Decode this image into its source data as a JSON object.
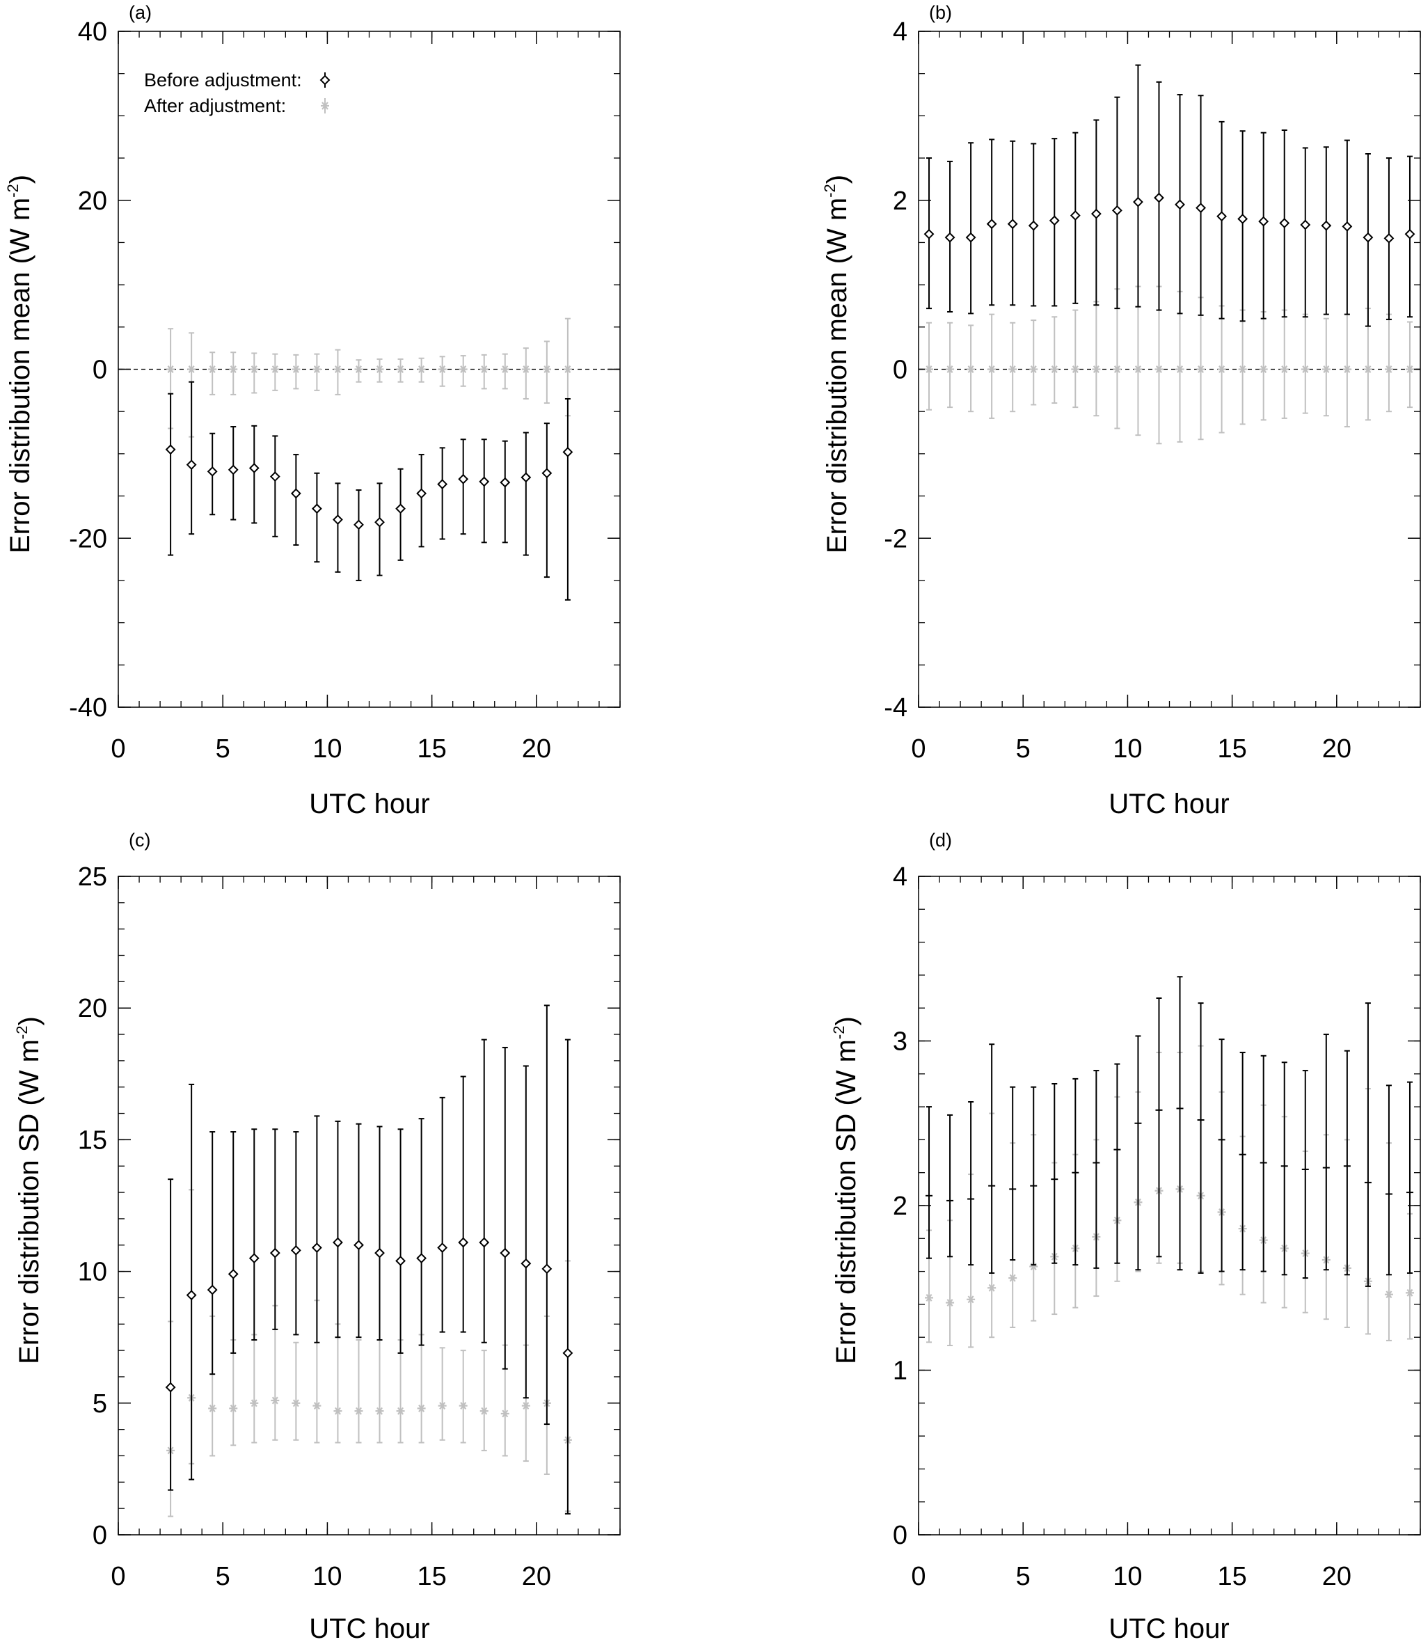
{
  "legend": {
    "before_label": "Before adjustment:",
    "after_label": "After adjustment:"
  },
  "colors": {
    "before": "#000000",
    "after": "#c0c0c0",
    "axis": "#000000"
  },
  "chart_data": [
    {
      "id": "a",
      "panel_label": "(a)",
      "type": "scatter",
      "title": "",
      "xlabel": "UTC hour",
      "ylabel": "Error distribution mean (W m",
      "ylabel_sup": "-2",
      "ylabel_close": ")",
      "xlim": [
        0,
        24
      ],
      "ylim": [
        -40,
        40
      ],
      "xticks": [
        0,
        5,
        10,
        15,
        20
      ],
      "yticks": [
        -40,
        -20,
        0,
        20,
        40
      ],
      "xminor": 1,
      "yminor": 5,
      "zero_line": true,
      "legend": true,
      "series": [
        {
          "name": "Before adjustment",
          "marker": "diamond",
          "x": [
            2.5,
            3.5,
            4.5,
            5.5,
            6.5,
            7.5,
            8.5,
            9.5,
            10.5,
            11.5,
            12.5,
            13.5,
            14.5,
            15.5,
            16.5,
            17.5,
            18.5,
            19.5,
            20.5,
            21.5
          ],
          "y": [
            -9.5,
            -11.3,
            -12.1,
            -11.9,
            -11.7,
            -12.7,
            -14.7,
            -16.5,
            -17.8,
            -18.4,
            -18.1,
            -16.5,
            -14.7,
            -13.6,
            -13,
            -13.3,
            -13.4,
            -12.8,
            -12.3,
            -9.8
          ],
          "err_low": [
            -22,
            -19.5,
            -17.2,
            -17.8,
            -18.2,
            -19.8,
            -20.8,
            -22.8,
            -24,
            -25,
            -24.4,
            -22.6,
            -21,
            -20.1,
            -19.5,
            -20.5,
            -20.5,
            -22,
            -24.6,
            -27.3
          ],
          "err_high": [
            -2.9,
            -1.5,
            -7.6,
            -6.8,
            -6.7,
            -7.9,
            -10.1,
            -12.3,
            -13.5,
            -14.3,
            -13.5,
            -11.8,
            -10.1,
            -9.3,
            -8.3,
            -8.3,
            -8.5,
            -7.5,
            -6.4,
            -3.5
          ]
        },
        {
          "name": "After adjustment",
          "marker": "asterisk",
          "x": [
            2.5,
            3.5,
            4.5,
            5.5,
            6.5,
            7.5,
            8.5,
            9.5,
            10.5,
            11.5,
            12.5,
            13.5,
            14.5,
            15.5,
            16.5,
            17.5,
            18.5,
            19.5,
            20.5,
            21.5
          ],
          "y": [
            0,
            0,
            0,
            0,
            0,
            0,
            0,
            0,
            0,
            0,
            0,
            0,
            0,
            0,
            0,
            0,
            0,
            0,
            0,
            0
          ],
          "err_low": [
            -7,
            -8,
            -3,
            -3,
            -2.8,
            -2.5,
            -2.3,
            -2.5,
            -3,
            -1.5,
            -1.5,
            -1.5,
            -1.5,
            -2,
            -2,
            -2.3,
            -2.3,
            -3.5,
            -4,
            -5.5
          ],
          "err_high": [
            4.8,
            4.3,
            2,
            2,
            1.9,
            1.8,
            1.7,
            1.8,
            2.3,
            1.1,
            1.2,
            1.2,
            1.3,
            1.5,
            1.6,
            1.7,
            1.8,
            2.5,
            3.3,
            6
          ]
        }
      ]
    },
    {
      "id": "b",
      "panel_label": "(b)",
      "type": "scatter",
      "title": "",
      "xlabel": "UTC hour",
      "ylabel": "Error distribution mean (W m",
      "ylabel_sup": "-2",
      "ylabel_close": ")",
      "xlim": [
        0,
        24
      ],
      "ylim": [
        -4,
        4
      ],
      "xticks": [
        0,
        5,
        10,
        15,
        20
      ],
      "yticks": [
        -4,
        -2,
        0,
        2,
        4
      ],
      "xminor": 1,
      "yminor": 0.5,
      "zero_line": true,
      "legend": false,
      "series": [
        {
          "name": "Before adjustment",
          "marker": "diamond",
          "x": [
            0.5,
            1.5,
            2.5,
            3.5,
            4.5,
            5.5,
            6.5,
            7.5,
            8.5,
            9.5,
            10.5,
            11.5,
            12.5,
            13.5,
            14.5,
            15.5,
            16.5,
            17.5,
            18.5,
            19.5,
            20.5,
            21.5,
            22.5,
            23.5
          ],
          "y": [
            1.6,
            1.56,
            1.56,
            1.72,
            1.72,
            1.7,
            1.76,
            1.82,
            1.84,
            1.88,
            1.98,
            2.03,
            1.95,
            1.91,
            1.81,
            1.78,
            1.75,
            1.73,
            1.71,
            1.7,
            1.69,
            1.56,
            1.55,
            1.6
          ],
          "err_low": [
            0.72,
            0.68,
            0.66,
            0.76,
            0.76,
            0.75,
            0.75,
            0.78,
            0.76,
            0.72,
            0.74,
            0.7,
            0.66,
            0.64,
            0.6,
            0.57,
            0.6,
            0.62,
            0.62,
            0.65,
            0.65,
            0.51,
            0.59,
            0.62
          ],
          "err_high": [
            2.5,
            2.46,
            2.68,
            2.72,
            2.7,
            2.67,
            2.73,
            2.8,
            2.95,
            3.22,
            3.6,
            3.4,
            3.25,
            3.24,
            2.93,
            2.82,
            2.8,
            2.83,
            2.62,
            2.63,
            2.71,
            2.55,
            2.5,
            2.52
          ]
        },
        {
          "name": "After adjustment",
          "marker": "asterisk",
          "x": [
            0.5,
            1.5,
            2.5,
            3.5,
            4.5,
            5.5,
            6.5,
            7.5,
            8.5,
            9.5,
            10.5,
            11.5,
            12.5,
            13.5,
            14.5,
            15.5,
            16.5,
            17.5,
            18.5,
            19.5,
            20.5,
            21.5,
            22.5,
            23.5
          ],
          "y": [
            0,
            0,
            0,
            0,
            0,
            0,
            0,
            0,
            0,
            0,
            0,
            0,
            0,
            0,
            0,
            0,
            0,
            0,
            0,
            0,
            0,
            0,
            0,
            0
          ],
          "err_low": [
            -0.48,
            -0.45,
            -0.5,
            -0.58,
            -0.5,
            -0.42,
            -0.4,
            -0.45,
            -0.55,
            -0.7,
            -0.78,
            -0.88,
            -0.86,
            -0.83,
            -0.75,
            -0.65,
            -0.6,
            -0.58,
            -0.52,
            -0.55,
            -0.68,
            -0.6,
            -0.5,
            -0.45
          ],
          "err_high": [
            0.55,
            0.55,
            0.52,
            0.65,
            0.55,
            0.58,
            0.62,
            0.7,
            0.8,
            0.95,
            0.98,
            0.98,
            0.92,
            0.85,
            0.75,
            0.7,
            0.68,
            0.7,
            0.65,
            0.6,
            0.65,
            0.72,
            0.65,
            0.56
          ]
        }
      ]
    },
    {
      "id": "c",
      "panel_label": "(c)",
      "type": "scatter",
      "title": "",
      "xlabel": "UTC hour",
      "ylabel": "Error distribution SD (W m",
      "ylabel_sup": "-2",
      "ylabel_close": ")",
      "xlim": [
        0,
        24
      ],
      "ylim": [
        0,
        25
      ],
      "xticks": [
        0,
        5,
        10,
        15,
        20
      ],
      "yticks": [
        0,
        5,
        10,
        15,
        20,
        25
      ],
      "xminor": 1,
      "yminor": 1,
      "zero_line": false,
      "legend": false,
      "series": [
        {
          "name": "Before adjustment",
          "marker": "diamond",
          "x": [
            2.5,
            3.5,
            4.5,
            5.5,
            6.5,
            7.5,
            8.5,
            9.5,
            10.5,
            11.5,
            12.5,
            13.5,
            14.5,
            15.5,
            16.5,
            17.5,
            18.5,
            19.5,
            20.5,
            21.5
          ],
          "y": [
            5.6,
            9.1,
            9.3,
            9.9,
            10.5,
            10.7,
            10.8,
            10.9,
            11.1,
            11,
            10.7,
            10.4,
            10.5,
            10.9,
            11.1,
            11.1,
            10.7,
            10.3,
            10.1,
            6.9
          ],
          "err_low": [
            1.7,
            2.1,
            6.1,
            6.9,
            7.4,
            7.8,
            7.6,
            7.3,
            7.5,
            7.5,
            7.4,
            6.9,
            7.2,
            7.7,
            7.7,
            7.3,
            6.3,
            5.2,
            4.2,
            0.8
          ],
          "err_high": [
            13.5,
            17.1,
            15.3,
            15.3,
            15.4,
            15.4,
            15.3,
            15.9,
            15.7,
            15.6,
            15.5,
            15.4,
            15.8,
            16.6,
            17.4,
            18.8,
            18.5,
            17.8,
            20.1,
            18.8
          ]
        },
        {
          "name": "After adjustment",
          "marker": "asterisk",
          "x": [
            2.5,
            3.5,
            4.5,
            5.5,
            6.5,
            7.5,
            8.5,
            9.5,
            10.5,
            11.5,
            12.5,
            13.5,
            14.5,
            15.5,
            16.5,
            17.5,
            18.5,
            19.5,
            20.5,
            21.5
          ],
          "y": [
            3.2,
            5.2,
            4.8,
            4.8,
            5,
            5.1,
            5,
            4.9,
            4.7,
            4.7,
            4.7,
            4.7,
            4.8,
            4.9,
            4.9,
            4.7,
            4.6,
            4.9,
            5,
            3.6
          ],
          "err_low": [
            0.7,
            2.7,
            3,
            3.4,
            3.5,
            3.6,
            3.6,
            3.5,
            3.5,
            3.5,
            3.5,
            3.5,
            3.5,
            3.6,
            3.5,
            3.2,
            3,
            2.8,
            2.3,
            0.9
          ],
          "err_high": [
            8.1,
            13.1,
            8.3,
            7.4,
            7.6,
            8.7,
            7.3,
            8.9,
            8,
            7.4,
            7.4,
            7.4,
            7.6,
            7.1,
            7,
            7,
            7.2,
            7.2,
            8.3,
            10.4
          ]
        }
      ]
    },
    {
      "id": "d",
      "panel_label": "(d)",
      "type": "scatter",
      "title": "",
      "xlabel": "UTC hour",
      "ylabel": "Error distribution SD (W m",
      "ylabel_sup": "-2",
      "ylabel_close": ")",
      "xlim": [
        0,
        24
      ],
      "ylim": [
        0,
        4
      ],
      "xticks": [
        0,
        5,
        10,
        15,
        20
      ],
      "yticks": [
        0,
        1,
        2,
        3,
        4
      ],
      "xminor": 1,
      "yminor": 0.2,
      "zero_line": false,
      "legend": false,
      "series": [
        {
          "name": "Before adjustment",
          "marker": "dash",
          "x": [
            0.5,
            1.5,
            2.5,
            3.5,
            4.5,
            5.5,
            6.5,
            7.5,
            8.5,
            9.5,
            10.5,
            11.5,
            12.5,
            13.5,
            14.5,
            15.5,
            16.5,
            17.5,
            18.5,
            19.5,
            20.5,
            21.5,
            22.5,
            23.5
          ],
          "y": [
            2.06,
            2.03,
            2.04,
            2.12,
            2.1,
            2.12,
            2.16,
            2.2,
            2.26,
            2.34,
            2.5,
            2.58,
            2.59,
            2.52,
            2.4,
            2.31,
            2.26,
            2.24,
            2.22,
            2.23,
            2.24,
            2.14,
            2.07,
            2.08
          ],
          "err_low": [
            1.68,
            1.69,
            1.64,
            1.59,
            1.67,
            1.64,
            1.65,
            1.64,
            1.62,
            1.65,
            1.61,
            1.69,
            1.61,
            1.59,
            1.6,
            1.61,
            1.6,
            1.58,
            1.56,
            1.61,
            1.58,
            1.51,
            1.58,
            1.59
          ],
          "err_high": [
            2.6,
            2.55,
            2.63,
            2.98,
            2.72,
            2.72,
            2.74,
            2.77,
            2.82,
            2.86,
            3.03,
            3.26,
            3.39,
            3.23,
            3.01,
            2.93,
            2.91,
            2.87,
            2.82,
            3.04,
            2.94,
            3.23,
            2.73,
            2.75
          ]
        },
        {
          "name": "After adjustment",
          "marker": "asterisk",
          "x": [
            0.5,
            1.5,
            2.5,
            3.5,
            4.5,
            5.5,
            6.5,
            7.5,
            8.5,
            9.5,
            10.5,
            11.5,
            12.5,
            13.5,
            14.5,
            15.5,
            16.5,
            17.5,
            18.5,
            19.5,
            20.5,
            21.5,
            22.5,
            23.5
          ],
          "y": [
            1.44,
            1.41,
            1.43,
            1.5,
            1.56,
            1.63,
            1.69,
            1.74,
            1.81,
            1.91,
            2.02,
            2.09,
            2.1,
            2.06,
            1.96,
            1.86,
            1.79,
            1.74,
            1.71,
            1.67,
            1.62,
            1.54,
            1.46,
            1.47
          ],
          "err_low": [
            1.17,
            1.15,
            1.14,
            1.2,
            1.26,
            1.3,
            1.34,
            1.38,
            1.45,
            1.54,
            1.6,
            1.65,
            1.65,
            1.6,
            1.52,
            1.46,
            1.41,
            1.38,
            1.35,
            1.31,
            1.26,
            1.22,
            1.18,
            1.19
          ],
          "err_high": [
            1.85,
            1.91,
            2.19,
            2.56,
            2.38,
            2.43,
            2.26,
            2.31,
            2.4,
            2.66,
            2.69,
            2.93,
            2.93,
            2.97,
            2.69,
            2.42,
            2.61,
            2.54,
            2.33,
            2.43,
            2.4,
            2.71,
            2.38,
            1.95
          ]
        }
      ]
    }
  ]
}
